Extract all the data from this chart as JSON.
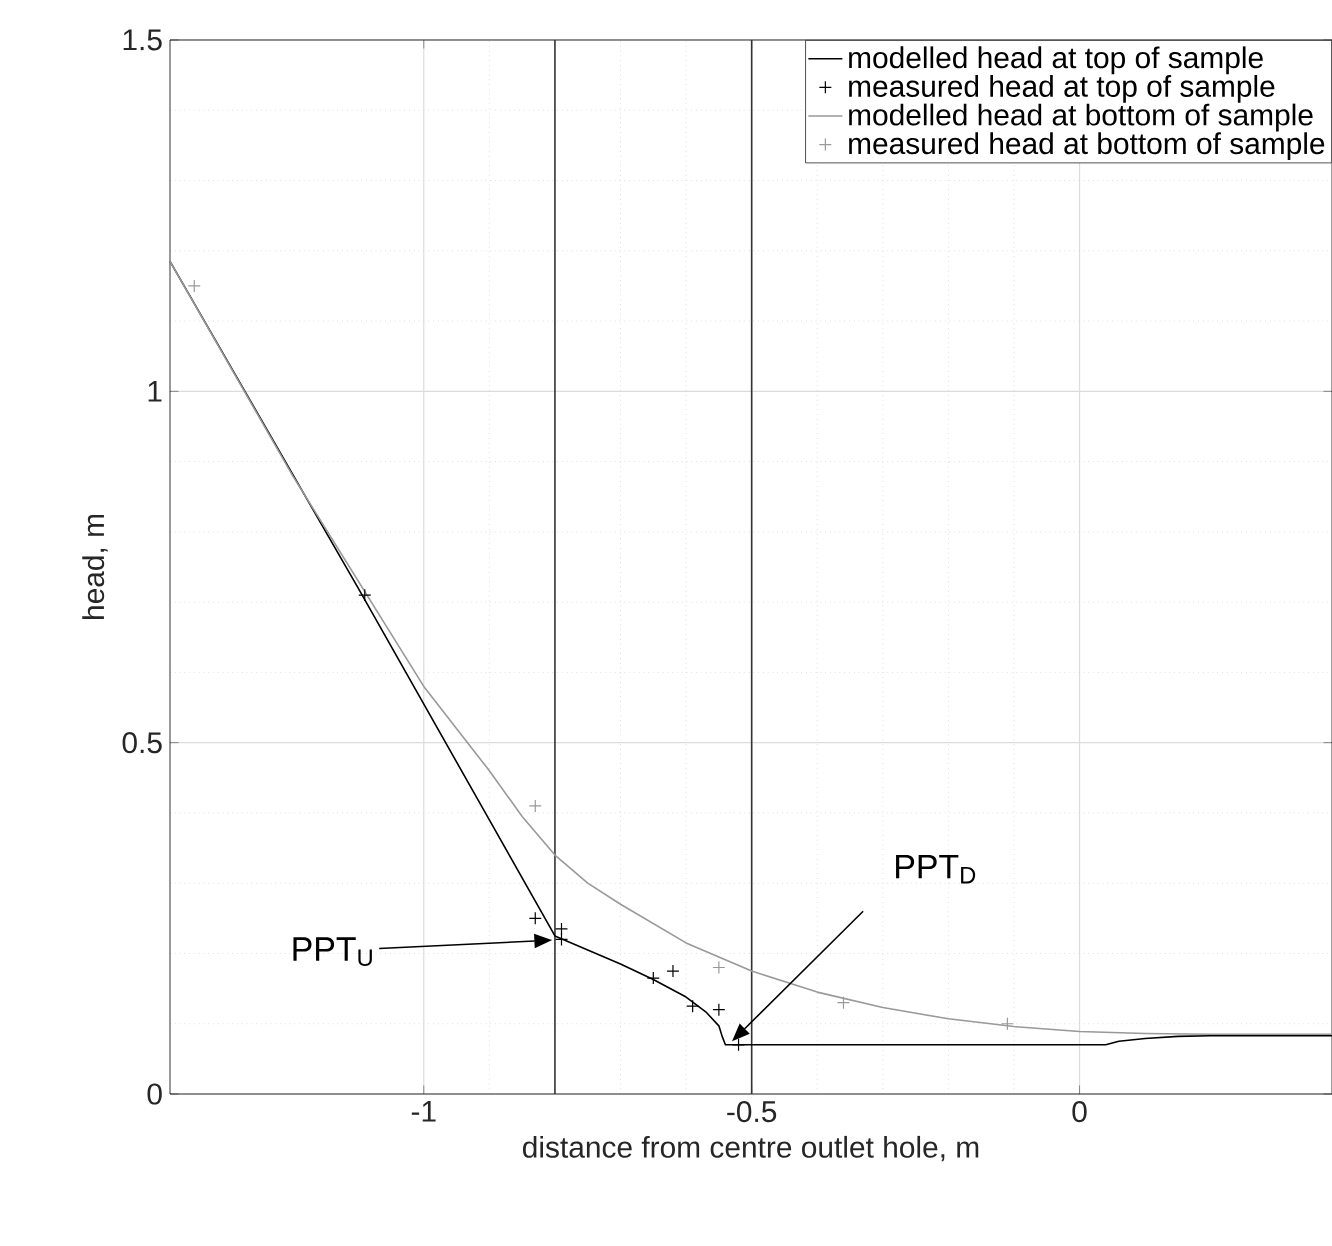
{
  "chart_data": {
    "type": "line",
    "xlabel": "distance from centre outlet hole, m",
    "ylabel": "head, m",
    "xlim": [
      -1.387,
      0.385
    ],
    "ylim": [
      0,
      1.5
    ],
    "xticks": [
      -1,
      -0.5,
      0
    ],
    "yticks": [
      0,
      0.5,
      1,
      1.5
    ],
    "grid": true,
    "legend": "top right",
    "series": [
      {
        "name": "modelled head at top of sample",
        "type": "line",
        "color": "#000000",
        "x": [
          -1.387,
          -1.1,
          -0.9,
          -0.8,
          -0.75,
          -0.7,
          -0.65,
          -0.6,
          -0.57,
          -0.55,
          -0.545,
          -0.54,
          0.04,
          0.06,
          0.1,
          0.15,
          0.2,
          0.385
        ],
        "values": [
          1.185,
          0.72,
          0.39,
          0.225,
          0.205,
          0.185,
          0.163,
          0.138,
          0.117,
          0.097,
          0.082,
          0.07,
          0.07,
          0.075,
          0.079,
          0.082,
          0.083,
          0.083
        ]
      },
      {
        "name": "measured head at top of sample",
        "type": "scatter",
        "marker": "cross",
        "color": "#000000",
        "x": [
          -1.09,
          -0.83,
          -0.79,
          -0.79,
          -0.65,
          -0.62,
          -0.59,
          -0.55,
          -0.52
        ],
        "values": [
          0.71,
          0.25,
          0.235,
          0.22,
          0.165,
          0.175,
          0.125,
          0.12,
          0.07
        ]
      },
      {
        "name": "modelled head at bottom of sample",
        "type": "line",
        "color": "#999999",
        "x": [
          -1.387,
          -1.2,
          -1.1,
          -1.0,
          -0.9,
          -0.85,
          -0.8,
          -0.75,
          -0.7,
          -0.6,
          -0.5,
          -0.4,
          -0.3,
          -0.2,
          -0.1,
          0,
          0.1,
          0.2,
          0.385
        ],
        "values": [
          1.185,
          0.88,
          0.73,
          0.58,
          0.46,
          0.395,
          0.34,
          0.3,
          0.27,
          0.215,
          0.175,
          0.145,
          0.123,
          0.107,
          0.096,
          0.089,
          0.086,
          0.085,
          0.085
        ]
      },
      {
        "name": "measured head at bottom of sample",
        "type": "scatter",
        "marker": "cross",
        "color": "#999999",
        "x": [
          -1.35,
          -0.83,
          -0.55,
          -0.36,
          -0.11
        ],
        "values": [
          1.15,
          0.41,
          0.18,
          0.13,
          0.1
        ]
      }
    ],
    "ref_lines": [
      {
        "axis": "x",
        "value": -0.8,
        "color": "#333333"
      },
      {
        "axis": "x",
        "value": -0.5,
        "color": "#333333"
      }
    ],
    "annotations": [
      "PPT$_{U}$",
      {
        "text": "PPT$_{D}$",
        "x": -0.53,
        "y": 0.075
      }
    ]
  }
}
